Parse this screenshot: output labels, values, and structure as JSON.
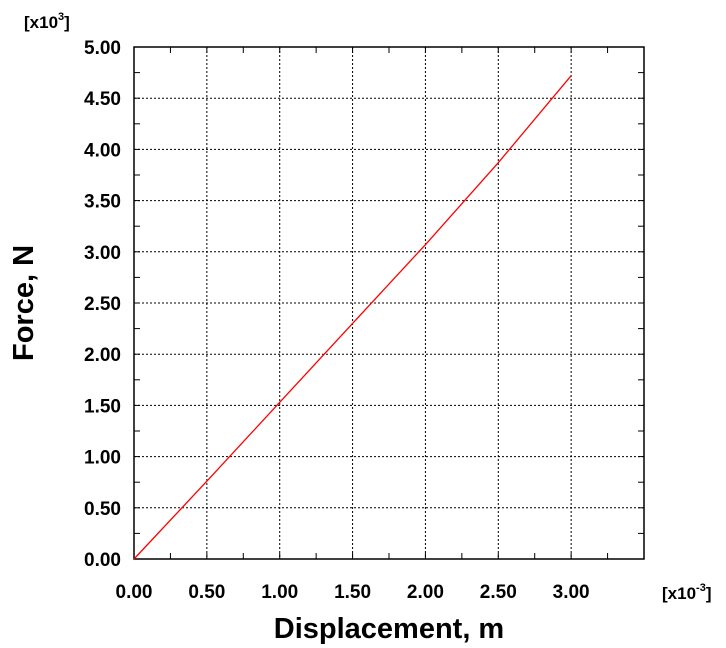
{
  "chart_data": {
    "type": "line",
    "title": "",
    "xlabel": "Displacement, m",
    "ylabel": "Force, N",
    "x_multiplier": {
      "base": "[x10",
      "exp": "-3",
      "close": "]"
    },
    "y_multiplier": {
      "base": "[x10",
      "exp": "3",
      "close": "]"
    },
    "xlim": [
      0.0,
      3.5
    ],
    "ylim": [
      0.0,
      5.0
    ],
    "x_ticks": [
      "0.00",
      "0.50",
      "1.00",
      "1.50",
      "2.00",
      "2.50",
      "3.00"
    ],
    "y_ticks": [
      "0.00",
      "0.50",
      "1.00",
      "1.50",
      "2.00",
      "2.50",
      "3.00",
      "3.50",
      "4.00",
      "4.50",
      "5.00"
    ],
    "grid": true,
    "series": [
      {
        "color": "#ff0000",
        "x": [
          0.0,
          0.5,
          1.0,
          1.5,
          2.0,
          2.5,
          3.0
        ],
        "y": [
          0.0,
          0.76,
          1.53,
          2.3,
          3.07,
          3.87,
          4.72
        ]
      }
    ]
  }
}
